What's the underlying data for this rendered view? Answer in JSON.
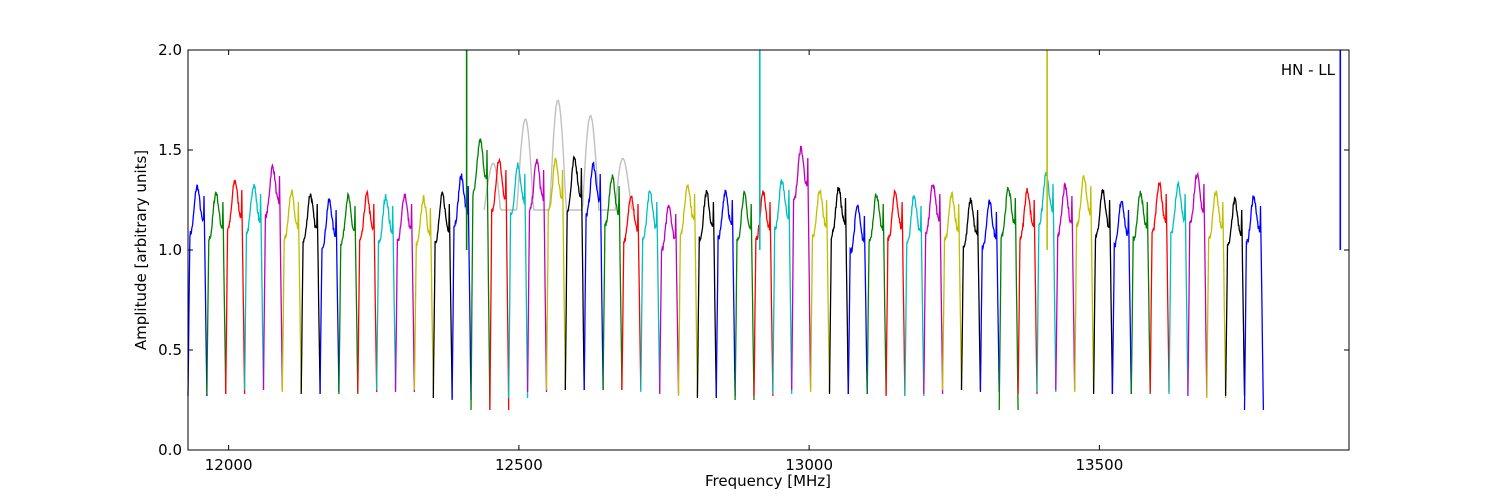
{
  "chart_data": {
    "type": "line",
    "title": "",
    "xlabel": "Frequency [MHz]",
    "ylabel": "Amplitude [arbitrary units]",
    "xlim": [
      11930,
      13930
    ],
    "ylim": [
      0.0,
      2.0
    ],
    "grid": false,
    "annotation": "HN - LL",
    "x_ticks": [
      12000,
      12500,
      13000,
      13500
    ],
    "x_tick_labels": [
      "12000",
      "12500",
      "13000",
      "13500"
    ],
    "y_ticks": [
      0.0,
      0.5,
      1.0,
      1.5,
      2.0
    ],
    "y_tick_labels": [
      "0.0",
      "0.5",
      "1.0",
      "1.5",
      "2.0"
    ],
    "color_cycle": [
      "#0000ff",
      "#008000",
      "#ff0000",
      "#00bfbf",
      "#bf00bf",
      "#bfbf00",
      "#000000"
    ],
    "background_color": "#c0c0c0",
    "channel_width_mhz": 32.5,
    "channel_start_mhz": 11930,
    "channel_peak_levels": [
      1.27,
      1.24,
      1.3,
      1.28,
      1.37,
      1.24,
      1.23,
      1.2,
      1.22,
      1.23,
      1.22,
      1.23,
      1.21,
      1.23,
      1.32,
      1.5,
      1.4,
      1.38,
      1.4,
      1.4,
      1.41,
      1.38,
      1.32,
      1.23,
      1.24,
      1.18,
      1.28,
      1.24,
      1.25,
      1.23,
      1.24,
      1.3,
      1.46,
      1.25,
      1.26,
      1.17,
      1.23,
      1.24,
      1.22,
      1.28,
      1.23,
      1.2,
      1.19,
      1.26,
      1.25,
      1.33,
      1.27,
      1.32,
      1.25,
      1.2,
      1.24,
      1.28,
      1.28,
      1.33,
      1.24,
      1.2,
      1.22
    ],
    "channel_min_levels": [
      0.27,
      0.28,
      0.28,
      0.3,
      0.3,
      0.29,
      0.28,
      0.29,
      0.28,
      0.29,
      0.3,
      0.29,
      0.3,
      0.26,
      0.25,
      0.2,
      0.2,
      0.26,
      0.29,
      0.3,
      0.3,
      0.3,
      0.3,
      0.3,
      0.29,
      0.28,
      0.27,
      0.26,
      0.27,
      0.25,
      0.27,
      0.28,
      0.3,
      0.29,
      0.28,
      0.28,
      0.28,
      0.27,
      0.27,
      0.28,
      0.3,
      0.3,
      0.29,
      0.2,
      0.28,
      0.29,
      0.3,
      0.29,
      0.28,
      0.28,
      0.28,
      0.29,
      0.28,
      0.27,
      0.26,
      0.27,
      0.2
    ],
    "spikes": [
      {
        "x": 12410,
        "y": 2.0,
        "color": "#008000"
      },
      {
        "x": 12915,
        "y": 2.0,
        "color": "#00bfbf"
      },
      {
        "x": 13410,
        "y": 2.0,
        "color": "#bfbf00"
      },
      {
        "x": 13915,
        "y": 2.0,
        "color": "#0000ff"
      }
    ]
  }
}
